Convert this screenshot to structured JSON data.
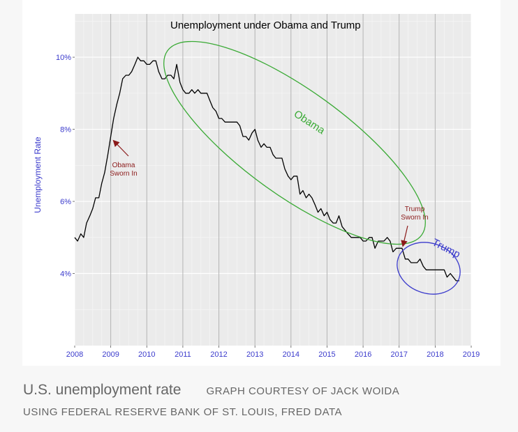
{
  "chart_data": {
    "type": "line",
    "title": "Unemployment under Obama and Trump",
    "xlabel": "",
    "ylabel": "Unemployment Rate",
    "xlim": [
      2008,
      2019
    ],
    "ylim": [
      2.0,
      11.2
    ],
    "x_ticks": [
      "2008",
      "2009",
      "2010",
      "2011",
      "2012",
      "2013",
      "2014",
      "2015",
      "2016",
      "2017",
      "2018",
      "2019"
    ],
    "y_ticks": [
      {
        "value": 4,
        "label": "4%"
      },
      {
        "value": 6,
        "label": "6%"
      },
      {
        "value": 8,
        "label": "8%"
      },
      {
        "value": 10,
        "label": "10%"
      }
    ],
    "grid": true,
    "series": [
      {
        "x": [
          2008.0,
          2008.08,
          2008.17,
          2008.25,
          2008.33,
          2008.42,
          2008.5,
          2008.58,
          2008.67,
          2008.75,
          2008.83,
          2008.92,
          2009.0,
          2009.08,
          2009.17,
          2009.25,
          2009.33,
          2009.42,
          2009.5,
          2009.58,
          2009.67,
          2009.75,
          2009.83,
          2009.92,
          2010.0,
          2010.08,
          2010.17,
          2010.25,
          2010.33,
          2010.42,
          2010.5,
          2010.58,
          2010.67,
          2010.75,
          2010.83,
          2010.92,
          2011.0,
          2011.08,
          2011.17,
          2011.25,
          2011.33,
          2011.42,
          2011.5,
          2011.58,
          2011.67,
          2011.75,
          2011.83,
          2011.92,
          2012.0,
          2012.08,
          2012.17,
          2012.25,
          2012.33,
          2012.42,
          2012.5,
          2012.58,
          2012.67,
          2012.75,
          2012.83,
          2012.92,
          2013.0,
          2013.08,
          2013.17,
          2013.25,
          2013.33,
          2013.42,
          2013.5,
          2013.58,
          2013.67,
          2013.75,
          2013.83,
          2013.92,
          2014.0,
          2014.08,
          2014.17,
          2014.25,
          2014.33,
          2014.42,
          2014.5,
          2014.58,
          2014.67,
          2014.75,
          2014.83,
          2014.92,
          2015.0,
          2015.08,
          2015.17,
          2015.25,
          2015.33,
          2015.42,
          2015.5,
          2015.58,
          2015.67,
          2015.75,
          2015.83,
          2015.92,
          2016.0,
          2016.08,
          2016.17,
          2016.25,
          2016.33,
          2016.42,
          2016.5,
          2016.58,
          2016.67,
          2016.75,
          2016.83,
          2016.92,
          2017.0,
          2017.08,
          2017.17,
          2017.25,
          2017.33,
          2017.42,
          2017.5,
          2017.58,
          2017.67,
          2017.75,
          2017.83,
          2017.92,
          2018.0,
          2018.08,
          2018.17,
          2018.25,
          2018.33,
          2018.42,
          2018.5,
          2018.58,
          2018.67
        ],
        "values": [
          5.0,
          4.9,
          5.1,
          5.0,
          5.4,
          5.6,
          5.8,
          6.1,
          6.1,
          6.5,
          6.8,
          7.3,
          7.8,
          8.3,
          8.7,
          9.0,
          9.4,
          9.5,
          9.5,
          9.6,
          9.8,
          10.0,
          9.9,
          9.9,
          9.8,
          9.8,
          9.9,
          9.9,
          9.6,
          9.4,
          9.4,
          9.5,
          9.5,
          9.4,
          9.8,
          9.3,
          9.1,
          9.0,
          9.0,
          9.1,
          9.0,
          9.1,
          9.0,
          9.0,
          9.0,
          8.8,
          8.6,
          8.5,
          8.3,
          8.3,
          8.2,
          8.2,
          8.2,
          8.2,
          8.2,
          8.1,
          7.8,
          7.8,
          7.7,
          7.9,
          8.0,
          7.7,
          7.5,
          7.6,
          7.5,
          7.5,
          7.3,
          7.2,
          7.2,
          7.2,
          6.9,
          6.7,
          6.6,
          6.7,
          6.7,
          6.2,
          6.3,
          6.1,
          6.2,
          6.1,
          5.9,
          5.7,
          5.8,
          5.6,
          5.7,
          5.5,
          5.4,
          5.4,
          5.6,
          5.3,
          5.2,
          5.1,
          5.0,
          5.0,
          5.0,
          5.0,
          4.9,
          4.9,
          5.0,
          5.0,
          4.7,
          4.9,
          4.9,
          4.9,
          5.0,
          4.9,
          4.6,
          4.7,
          4.7,
          4.7,
          4.4,
          4.4,
          4.3,
          4.3,
          4.3,
          4.4,
          4.2,
          4.1,
          4.1,
          4.1,
          4.1,
          4.1,
          4.1,
          4.1,
          3.9,
          4.0,
          3.9,
          3.8,
          3.8
        ]
      }
    ],
    "annotations": [
      {
        "text_lines": [
          "Obama",
          "Sworn In"
        ],
        "x": 2009.05,
        "y": 7.75,
        "color": "#8b1a1a"
      },
      {
        "text_lines": [
          "Trump",
          "Sworn In"
        ],
        "x": 2017.05,
        "y": 4.7,
        "color": "#8b1a1a"
      },
      {
        "text": "Obama",
        "color": "#3aaa35"
      },
      {
        "text": "Trump",
        "color": "#3a3acc"
      }
    ],
    "colors": {
      "line": "#000000",
      "axis_text": "#3a3acc",
      "obama": "#3aaa35",
      "trump": "#3a3acc",
      "sworn_in": "#8b1a1a"
    }
  },
  "caption": {
    "title": "U.S. unemployment rate",
    "credit": "GRAPH COURTESY OF JACK WOIDA",
    "source": "USING FEDERAL RESERVE BANK OF ST. LOUIS, FRED DATA"
  }
}
